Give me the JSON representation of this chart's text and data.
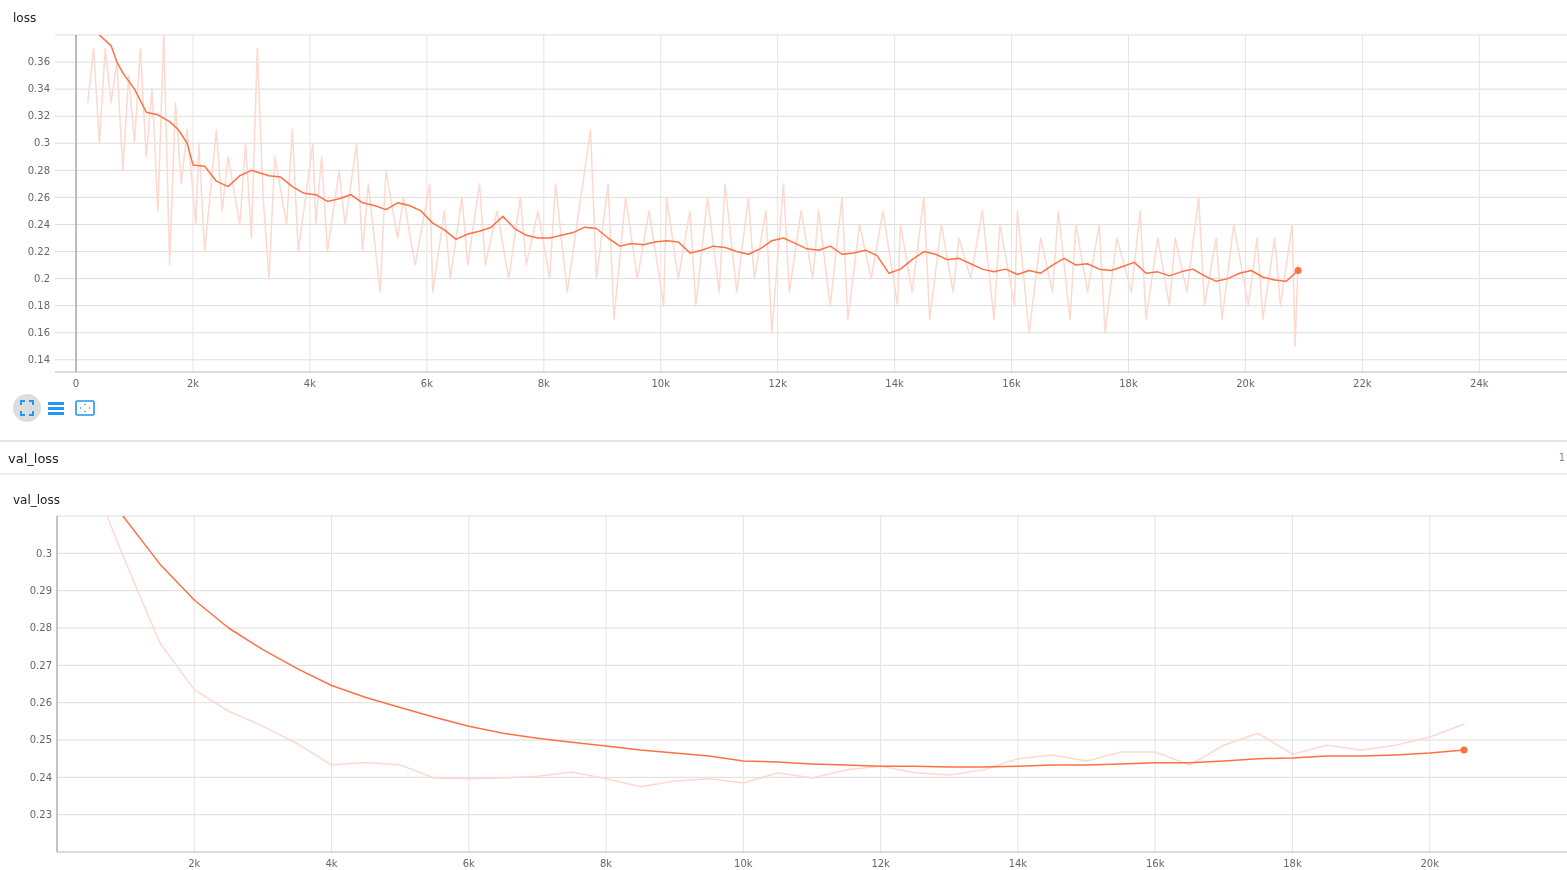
{
  "chart_data": [
    {
      "type": "line",
      "title": "loss",
      "xlim": [
        -360,
        25500
      ],
      "ylim": [
        0.131,
        0.38
      ],
      "xticks": [
        0,
        {
          "value": 2000,
          "label": "2k"
        },
        {
          "value": 4000,
          "label": "4k"
        },
        {
          "value": 6000,
          "label": "6k"
        },
        {
          "value": 8000,
          "label": "8k"
        },
        {
          "value": 10000,
          "label": "10k"
        },
        {
          "value": 12000,
          "label": "12k"
        },
        {
          "value": 14000,
          "label": "14k"
        },
        {
          "value": 16000,
          "label": "16k"
        },
        {
          "value": 18000,
          "label": "18k"
        },
        {
          "value": 20000,
          "label": "20k"
        },
        {
          "value": 22000,
          "label": "22k"
        },
        {
          "value": 24000,
          "label": "24k"
        }
      ],
      "yticks": [
        0.14,
        0.16,
        0.18,
        0.2,
        0.22,
        0.24,
        0.26,
        0.28,
        0.3,
        0.32,
        0.34,
        0.36
      ],
      "grid": true,
      "series": [
        {
          "color": "#fdd9cf",
          "x": [
            200,
            300,
            400,
            500,
            600,
            700,
            800,
            900,
            1000,
            1100,
            1200,
            1300,
            1400,
            1500,
            1600,
            1700,
            1800,
            1900,
            2050,
            2100,
            2200,
            2400,
            2500,
            2600,
            2800,
            2900,
            3000,
            3100,
            3200,
            3300,
            3400,
            3600,
            3700,
            3800,
            4050,
            4100,
            4200,
            4300,
            4500,
            4600,
            4800,
            4900,
            5000,
            5200,
            5300,
            5500,
            5600,
            5800,
            6050,
            6100,
            6300,
            6400,
            6600,
            6700,
            6900,
            7000,
            7200,
            7400,
            7600,
            7700,
            7900,
            8100,
            8200,
            8400,
            8600,
            8800,
            8900,
            9100,
            9200,
            9400,
            9600,
            9800,
            10050,
            10100,
            10300,
            10500,
            10600,
            10800,
            11000,
            11100,
            11300,
            11500,
            11600,
            11800,
            11900,
            12100,
            12200,
            12400,
            12600,
            12700,
            12900,
            13100,
            13200,
            13400,
            13600,
            13800,
            14050,
            14100,
            14300,
            14500,
            14600,
            14800,
            15000,
            15100,
            15300,
            15500,
            15700,
            15800,
            16050,
            16100,
            16300,
            16500,
            16700,
            16800,
            17000,
            17100,
            17300,
            17500,
            17600,
            17800,
            18050,
            18200,
            18300,
            18500,
            18700,
            18800,
            19000,
            19200,
            19300,
            19500,
            19600,
            19800,
            20050,
            20200,
            20300,
            20500,
            20600,
            20800,
            20850,
            20900
          ],
          "values": [
            0.33,
            0.37,
            0.3,
            0.37,
            0.33,
            0.36,
            0.28,
            0.35,
            0.3,
            0.37,
            0.29,
            0.34,
            0.25,
            0.38,
            0.21,
            0.33,
            0.27,
            0.31,
            0.24,
            0.3,
            0.22,
            0.31,
            0.25,
            0.29,
            0.24,
            0.3,
            0.23,
            0.37,
            0.26,
            0.2,
            0.29,
            0.24,
            0.31,
            0.22,
            0.3,
            0.24,
            0.29,
            0.22,
            0.28,
            0.24,
            0.3,
            0.22,
            0.27,
            0.19,
            0.28,
            0.23,
            0.26,
            0.21,
            0.27,
            0.19,
            0.25,
            0.2,
            0.26,
            0.21,
            0.27,
            0.21,
            0.25,
            0.2,
            0.26,
            0.21,
            0.25,
            0.2,
            0.27,
            0.19,
            0.25,
            0.31,
            0.2,
            0.27,
            0.17,
            0.26,
            0.2,
            0.25,
            0.18,
            0.26,
            0.2,
            0.25,
            0.18,
            0.26,
            0.19,
            0.27,
            0.19,
            0.26,
            0.2,
            0.25,
            0.16,
            0.27,
            0.19,
            0.25,
            0.2,
            0.25,
            0.18,
            0.26,
            0.17,
            0.24,
            0.2,
            0.25,
            0.18,
            0.24,
            0.19,
            0.26,
            0.17,
            0.24,
            0.19,
            0.23,
            0.2,
            0.25,
            0.17,
            0.24,
            0.18,
            0.25,
            0.16,
            0.23,
            0.19,
            0.25,
            0.17,
            0.24,
            0.19,
            0.24,
            0.16,
            0.23,
            0.19,
            0.25,
            0.17,
            0.23,
            0.18,
            0.23,
            0.19,
            0.26,
            0.18,
            0.23,
            0.17,
            0.24,
            0.18,
            0.23,
            0.17,
            0.23,
            0.18,
            0.24,
            0.15,
            0.21
          ]
        },
        {
          "color": "#ff7043",
          "x": [
            400,
            600,
            700,
            800,
            1000,
            1200,
            1400,
            1600,
            1750,
            1900,
            2000,
            2200,
            2400,
            2600,
            2800,
            3000,
            3300,
            3500,
            3700,
            3900,
            4100,
            4300,
            4500,
            4700,
            4900,
            5100,
            5300,
            5500,
            5700,
            5900,
            6100,
            6300,
            6500,
            6700,
            6900,
            7100,
            7300,
            7500,
            7700,
            7900,
            8100,
            8300,
            8500,
            8700,
            8900,
            9100,
            9300,
            9500,
            9700,
            9900,
            10100,
            10300,
            10500,
            10700,
            10900,
            11100,
            11300,
            11500,
            11700,
            11900,
            12100,
            12300,
            12500,
            12700,
            12900,
            13100,
            13300,
            13500,
            13700,
            13900,
            14100,
            14300,
            14500,
            14700,
            14900,
            15100,
            15300,
            15500,
            15700,
            15900,
            16100,
            16300,
            16500,
            16700,
            16900,
            17100,
            17300,
            17500,
            17700,
            17900,
            18100,
            18300,
            18500,
            18700,
            18900,
            19100,
            19300,
            19500,
            19700,
            19900,
            20100,
            20300,
            20500,
            20700,
            20900
          ],
          "values": [
            0.38,
            0.372,
            0.36,
            0.352,
            0.34,
            0.323,
            0.321,
            0.316,
            0.31,
            0.3,
            0.284,
            0.283,
            0.272,
            0.268,
            0.276,
            0.28,
            0.276,
            0.275,
            0.268,
            0.263,
            0.262,
            0.257,
            0.259,
            0.262,
            0.256,
            0.254,
            0.251,
            0.256,
            0.254,
            0.25,
            0.241,
            0.236,
            0.229,
            0.233,
            0.235,
            0.238,
            0.246,
            0.237,
            0.232,
            0.23,
            0.23,
            0.232,
            0.234,
            0.238,
            0.237,
            0.23,
            0.224,
            0.226,
            0.225,
            0.227,
            0.228,
            0.227,
            0.219,
            0.221,
            0.224,
            0.223,
            0.22,
            0.218,
            0.222,
            0.228,
            0.23,
            0.226,
            0.222,
            0.221,
            0.224,
            0.218,
            0.219,
            0.221,
            0.217,
            0.204,
            0.207,
            0.214,
            0.22,
            0.218,
            0.214,
            0.215,
            0.211,
            0.207,
            0.205,
            0.207,
            0.203,
            0.206,
            0.204,
            0.21,
            0.215,
            0.21,
            0.211,
            0.207,
            0.206,
            0.209,
            0.212,
            0.204,
            0.205,
            0.202,
            0.205,
            0.207,
            0.202,
            0.198,
            0.2,
            0.204,
            0.206,
            0.201,
            0.199,
            0.198,
            0.206
          ]
        }
      ]
    },
    {
      "type": "line",
      "title": "val_loss",
      "annotations": [
        "val_loss",
        "1"
      ],
      "xlim": [
        0,
        22000
      ],
      "ylim": [
        0.22,
        0.31
      ],
      "xticks": [
        {
          "value": 2000,
          "label": "2k"
        },
        {
          "value": 4000,
          "label": "4k"
        },
        {
          "value": 6000,
          "label": "6k"
        },
        {
          "value": 8000,
          "label": "8k"
        },
        {
          "value": 10000,
          "label": "10k"
        },
        {
          "value": 12000,
          "label": "12k"
        },
        {
          "value": 14000,
          "label": "14k"
        },
        {
          "value": 16000,
          "label": "16k"
        },
        {
          "value": 18000,
          "label": "18k"
        },
        {
          "value": 20000,
          "label": "20k"
        }
      ],
      "yticks": [
        0.23,
        0.24,
        0.25,
        0.26,
        0.27,
        0.28,
        0.29,
        0.3
      ],
      "grid": true,
      "series": [
        {
          "color": "#fdd9cf",
          "x": [
            730,
            1000,
            1500,
            2000,
            2500,
            3000,
            3500,
            4000,
            4500,
            5000,
            5500,
            6000,
            6500,
            7000,
            7500,
            8000,
            8500,
            9000,
            9500,
            10000,
            10500,
            11000,
            11500,
            12000,
            12500,
            13000,
            13500,
            14000,
            14500,
            15000,
            15500,
            16000,
            16500,
            17000,
            17500,
            18000,
            18500,
            19000,
            19500,
            20000,
            20500
          ],
          "values": [
            0.31,
            0.2976,
            0.276,
            0.2635,
            0.2577,
            0.2537,
            0.249,
            0.2433,
            0.244,
            0.2433,
            0.2398,
            0.2396,
            0.2398,
            0.2403,
            0.2414,
            0.2396,
            0.2375,
            0.239,
            0.2396,
            0.2385,
            0.2412,
            0.2398,
            0.242,
            0.243,
            0.2412,
            0.2406,
            0.242,
            0.245,
            0.246,
            0.2444,
            0.2468,
            0.2468,
            0.2433,
            0.2486,
            0.2518,
            0.2462,
            0.2486,
            0.2473,
            0.2486,
            0.2508,
            0.2542
          ]
        },
        {
          "color": "#ff7043",
          "x": [
            960,
            1500,
            2000,
            2500,
            3000,
            3500,
            4000,
            4500,
            5000,
            5500,
            6000,
            6500,
            7000,
            7500,
            8000,
            8500,
            9000,
            9500,
            10000,
            10500,
            11000,
            11500,
            12000,
            12500,
            13000,
            13500,
            14000,
            14500,
            15000,
            15500,
            16000,
            16500,
            17000,
            17500,
            18000,
            18500,
            19000,
            19500,
            20000,
            20500
          ],
          "values": [
            0.31,
            0.2971,
            0.2875,
            0.28,
            0.2742,
            0.2691,
            0.2646,
            0.2614,
            0.2587,
            0.2561,
            0.2537,
            0.2518,
            0.2505,
            0.2494,
            0.2484,
            0.2473,
            0.2465,
            0.2457,
            0.2444,
            0.2441,
            0.2436,
            0.2433,
            0.243,
            0.243,
            0.2428,
            0.2428,
            0.243,
            0.2433,
            0.2433,
            0.2436,
            0.2439,
            0.2439,
            0.2444,
            0.245,
            0.2452,
            0.2457,
            0.2457,
            0.246,
            0.2465,
            0.2473
          ]
        }
      ]
    }
  ]
}
